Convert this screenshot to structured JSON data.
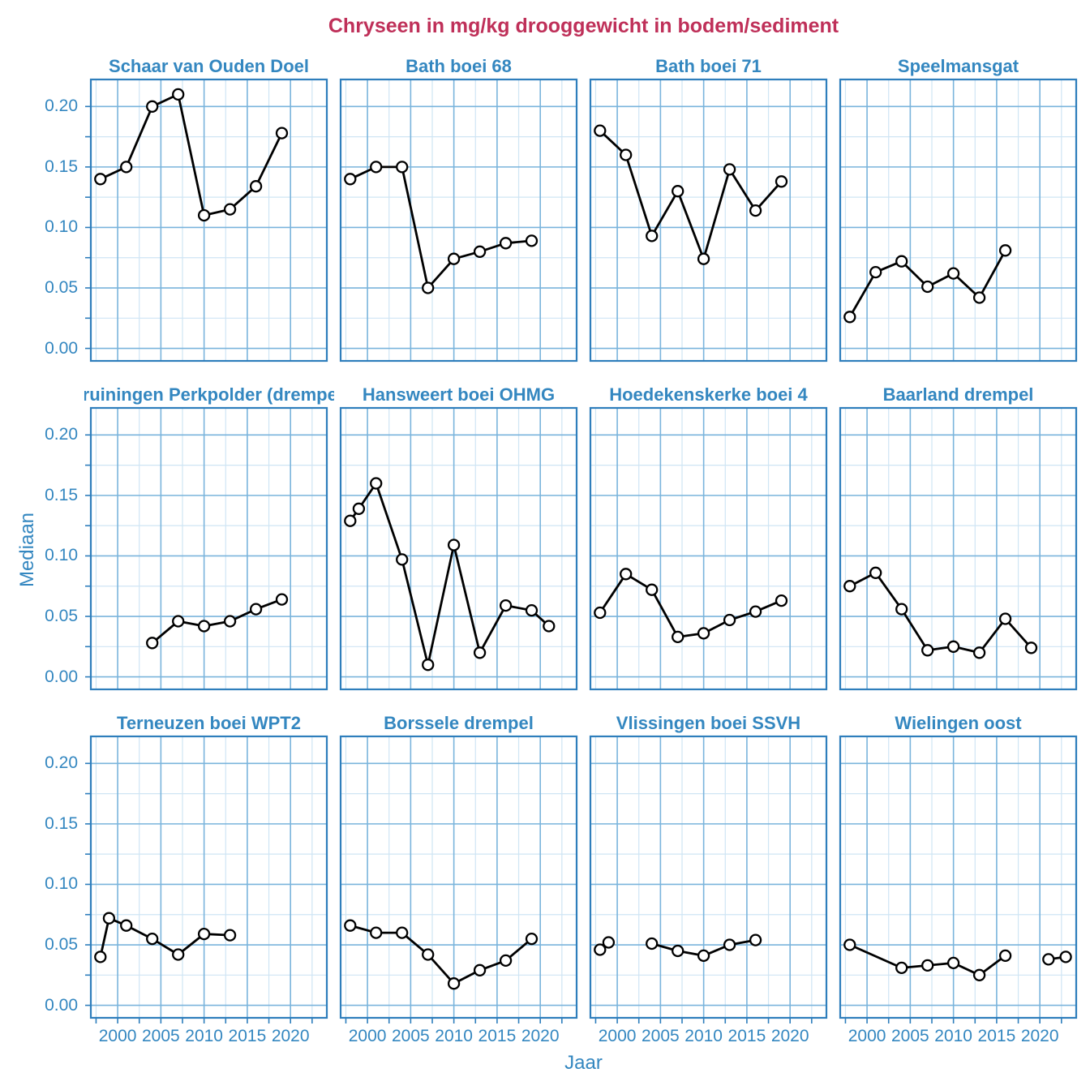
{
  "chart_data": {
    "type": "line",
    "title": "Chryseen in mg/kg drooggewicht in bodem/sediment",
    "xlabel": "Jaar",
    "ylabel": "Mediaan",
    "x_ticks": [
      2000,
      2005,
      2010,
      2015,
      2020
    ],
    "x_minor_ticks": [
      1997.5,
      2002.5,
      2007.5,
      2012.5,
      2017.5,
      2022.5
    ],
    "y_ticks": [
      0.0,
      0.05,
      0.1,
      0.15,
      0.2
    ],
    "y_minor_ticks": [
      0.025,
      0.075,
      0.125,
      0.175
    ],
    "x_range": [
      1996.8,
      2024.3
    ],
    "y_range": [
      -0.011,
      0.223
    ],
    "grid": true,
    "legend": "none",
    "facet_layout": {
      "rows": 3,
      "cols": 4
    },
    "colors": {
      "title": "#bf3059",
      "axis_text": "#3487c0",
      "panel_border": "#2e7ebc",
      "grid_major": "#7ab4dc",
      "grid_minor": "#cfe5f4",
      "line": "#000000",
      "marker_fill": "#ffffff"
    },
    "panels": [
      {
        "title": "Schaar van Ouden Doel",
        "segments": [
          [
            [
              1998,
              0.14
            ],
            [
              2001,
              0.15
            ],
            [
              2004,
              0.2
            ],
            [
              2007,
              0.21
            ],
            [
              2010,
              0.11
            ],
            [
              2013,
              0.115
            ],
            [
              2016,
              0.134
            ],
            [
              2019,
              0.178
            ]
          ]
        ]
      },
      {
        "title": "Bath boei 68",
        "segments": [
          [
            [
              1998,
              0.14
            ],
            [
              2001,
              0.15
            ],
            [
              2004,
              0.15
            ],
            [
              2007,
              0.05
            ],
            [
              2010,
              0.074
            ],
            [
              2013,
              0.08
            ],
            [
              2016,
              0.087
            ],
            [
              2019,
              0.089
            ]
          ]
        ]
      },
      {
        "title": "Bath boei 71",
        "segments": [
          [
            [
              1998,
              0.18
            ],
            [
              2001,
              0.16
            ],
            [
              2004,
              0.093
            ],
            [
              2007,
              0.13
            ],
            [
              2010,
              0.074
            ],
            [
              2013,
              0.148
            ],
            [
              2016,
              0.114
            ],
            [
              2019,
              0.138
            ]
          ]
        ]
      },
      {
        "title": "Speelmansgat",
        "segments": [
          [
            [
              1998,
              0.026
            ],
            [
              2001,
              0.063
            ],
            [
              2004,
              0.072
            ],
            [
              2007,
              0.051
            ],
            [
              2010,
              0.062
            ],
            [
              2013,
              0.042
            ],
            [
              2016,
              0.081
            ]
          ]
        ]
      },
      {
        "title": "Kruiningen Perkpolder (drempel)",
        "segments": [
          [
            [
              2004,
              0.028
            ],
            [
              2007,
              0.046
            ],
            [
              2010,
              0.042
            ],
            [
              2013,
              0.046
            ],
            [
              2016,
              0.056
            ],
            [
              2019,
              0.064
            ]
          ]
        ]
      },
      {
        "title": "Hansweert boei OHMG",
        "segments": [
          [
            [
              1998,
              0.129
            ],
            [
              1999,
              0.139
            ],
            [
              2001,
              0.16
            ],
            [
              2004,
              0.097
            ],
            [
              2007,
              0.01
            ],
            [
              2010,
              0.109
            ],
            [
              2013,
              0.02
            ],
            [
              2016,
              0.059
            ],
            [
              2019,
              0.055
            ],
            [
              2021,
              0.042
            ]
          ]
        ]
      },
      {
        "title": "Hoedekenskerke boei 4",
        "segments": [
          [
            [
              1998,
              0.053
            ],
            [
              2001,
              0.085
            ],
            [
              2004,
              0.072
            ],
            [
              2007,
              0.033
            ],
            [
              2010,
              0.036
            ],
            [
              2013,
              0.047
            ],
            [
              2016,
              0.054
            ],
            [
              2019,
              0.063
            ]
          ]
        ]
      },
      {
        "title": "Baarland drempel",
        "segments": [
          [
            [
              1998,
              0.075
            ],
            [
              2001,
              0.086
            ],
            [
              2004,
              0.056
            ],
            [
              2007,
              0.022
            ],
            [
              2010,
              0.025
            ],
            [
              2013,
              0.02
            ],
            [
              2016,
              0.048
            ],
            [
              2019,
              0.024
            ]
          ]
        ]
      },
      {
        "title": "Terneuzen boei WPT2",
        "segments": [
          [
            [
              1998,
              0.04
            ],
            [
              1999,
              0.072
            ],
            [
              2001,
              0.066
            ],
            [
              2004,
              0.055
            ],
            [
              2007,
              0.042
            ],
            [
              2010,
              0.059
            ],
            [
              2013,
              0.058
            ]
          ]
        ]
      },
      {
        "title": "Borssele drempel",
        "segments": [
          [
            [
              1998,
              0.066
            ],
            [
              2001,
              0.06
            ],
            [
              2004,
              0.06
            ],
            [
              2007,
              0.042
            ],
            [
              2010,
              0.018
            ],
            [
              2013,
              0.029
            ],
            [
              2016,
              0.037
            ],
            [
              2019,
              0.055
            ]
          ]
        ]
      },
      {
        "title": "Vlissingen boei SSVH",
        "segments": [
          [
            [
              1998,
              0.046
            ],
            [
              1999,
              0.052
            ]
          ],
          [
            [
              2004,
              0.051
            ],
            [
              2007,
              0.045
            ],
            [
              2010,
              0.041
            ],
            [
              2013,
              0.05
            ],
            [
              2016,
              0.054
            ]
          ]
        ]
      },
      {
        "title": "Wielingen oost",
        "segments": [
          [
            [
              1998,
              0.05
            ],
            [
              2004,
              0.031
            ],
            [
              2007,
              0.033
            ],
            [
              2010,
              0.035
            ],
            [
              2013,
              0.025
            ],
            [
              2016,
              0.041
            ]
          ],
          [
            [
              2021,
              0.038
            ],
            [
              2023,
              0.04
            ]
          ]
        ]
      }
    ]
  }
}
